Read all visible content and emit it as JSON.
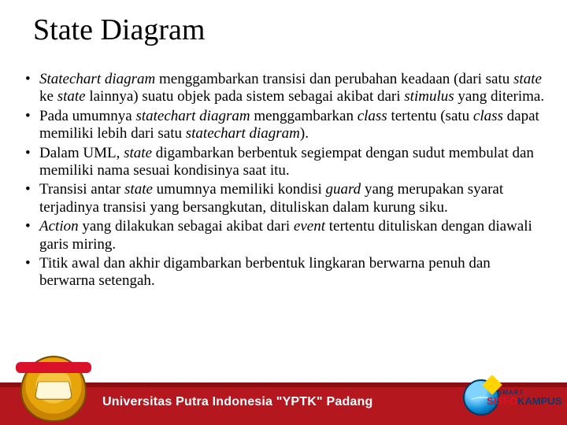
{
  "title": "State Diagram",
  "bullets": [
    {
      "html": "<span class='it'>Statechart diagram</span> menggambarkan transisi dan perubahan keadaan (dari satu <span class='it'>state</span> ke <span class='it'>state</span> lainnya) suatu objek pada sistem sebagai akibat dari <span class='it'>stimulus</span> yang diterima."
    },
    {
      "html": "Pada umumnya <span class='it'>statechart diagram</span> menggambarkan <span class='it'>class</span> tertentu (satu <span class='it'>class</span> dapat memiliki lebih dari satu <span class='it'>statechart diagram</span>)."
    },
    {
      "html": "Dalam UML, <span class='it'>state</span> digambarkan berbentuk segiempat dengan sudut membulat dan memiliki nama sesuai kondisinya saat itu."
    },
    {
      "html": "Transisi antar <span class='it'>state</span> umumnya memiliki kondisi <span class='it'>guard</span> yang merupakan syarat terjadinya transisi yang bersangkutan, dituliskan dalam kurung siku."
    },
    {
      "html": "<span class='it'>Action</span> yang dilakukan sebagai akibat dari <span class='it'>event</span> tertentu dituliskan dengan diawali garis miring."
    },
    {
      "html": "Titik awal dan akhir digambarkan berbentuk lingkaran berwarna penuh dan berwarna setengah."
    }
  ],
  "footer": {
    "band_top_color": "#8a0f12",
    "band_main_color": "#b5171f",
    "university_text": "Universitas Putra Indonesia \"YPTK\" Padang",
    "university_text_color": "#ffffff",
    "sisfo_small": "SMART",
    "sisfo_main_a": "SISFO",
    "sisfo_main_b": "KAMPUS"
  }
}
